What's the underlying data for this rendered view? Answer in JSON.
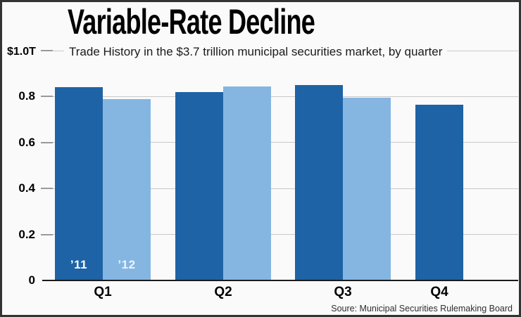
{
  "header": {
    "title": "Variable-Rate Decline",
    "subtitle": "Trade History in the $3.7 trillion municipal securities market, by quarter"
  },
  "footer": {
    "source": "Soure: Municipal Securities Rulemaking Board"
  },
  "chart_data": {
    "type": "bar",
    "title": "Variable-Rate Decline",
    "subtitle": "Trade History in the $3.7 trillion municipal securities market, by quarter",
    "categories": [
      "Q1",
      "Q2",
      "Q3",
      "Q4"
    ],
    "series": [
      {
        "name": "’11",
        "color": "#1e63a5",
        "values": [
          0.84,
          0.82,
          0.85,
          0.765
        ]
      },
      {
        "name": "’12",
        "color": "#85b6e2",
        "values": [
          0.79,
          0.845,
          0.795,
          null
        ]
      }
    ],
    "value_unit": "trillions of dollars",
    "ylim": [
      0,
      1.0
    ],
    "yticks": [
      0,
      0.2,
      0.4,
      0.6,
      0.8,
      1.0
    ],
    "ytick_labels": [
      "0",
      "0.2",
      "0.4",
      "0.6",
      "0.8",
      "$1.0T"
    ],
    "grid": true,
    "legend_position": "labels-inside-first-quarter-bars",
    "source": "Soure: Municipal Securities Rulemaking Board"
  },
  "colors": {
    "series_2011": "#1e63a5",
    "series_2012": "#85b6e2",
    "background": "#fafafa",
    "gridline": "#c9c9c9",
    "axis_line": "#1b1b1b"
  }
}
